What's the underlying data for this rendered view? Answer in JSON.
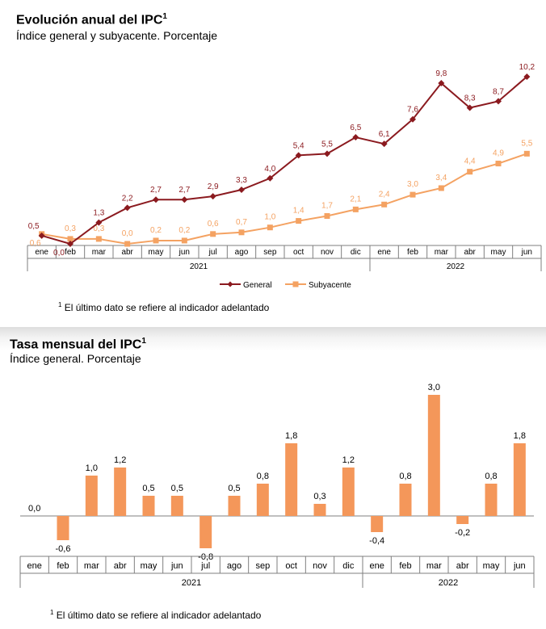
{
  "charts": [
    {
      "title": "Evolución anual del IPC",
      "title_sup": "1",
      "subtitle": "Índice general y subyacente. Porcentaje",
      "footnote_mark": "1",
      "footnote": "El último dato se refiere al indicador adelantado"
    },
    {
      "title": "Tasa mensual del IPC",
      "title_sup": "1",
      "subtitle": "Índice general. Porcentaje",
      "footnote_mark": "1",
      "footnote": "El último dato se refiere al indicador adelantado"
    }
  ],
  "colors": {
    "general": "#8b1a1f",
    "subyacente": "#f4a262",
    "bar": "#f4975a",
    "axis": "#7f7f7f"
  },
  "chart_data": [
    {
      "type": "line",
      "title": "Evolución anual del IPC",
      "categories": [
        "ene",
        "feb",
        "mar",
        "abr",
        "may",
        "jun",
        "jul",
        "ago",
        "sep",
        "oct",
        "nov",
        "dic",
        "ene",
        "feb",
        "mar",
        "abr",
        "may",
        "jun"
      ],
      "groups": [
        {
          "label": "2021",
          "count": 12
        },
        {
          "label": "2022",
          "count": 6
        }
      ],
      "series": [
        {
          "name": "General",
          "values": [
            0.5,
            0.0,
            1.3,
            2.2,
            2.7,
            2.7,
            2.9,
            3.3,
            4.0,
            5.4,
            5.5,
            6.5,
            6.1,
            7.6,
            9.8,
            8.3,
            8.7,
            10.2
          ],
          "labels": [
            "0,5",
            "0,0",
            "1,3",
            "2,2",
            "2,7",
            "2,7",
            "2,9",
            "3,3",
            "4,0",
            "5,4",
            "5,5",
            "6,5",
            "6,1",
            "7,6",
            "9,8",
            "8,3",
            "8,7",
            "10,2"
          ]
        },
        {
          "name": "Subyacente",
          "values": [
            0.6,
            0.3,
            0.3,
            0.0,
            0.2,
            0.2,
            0.6,
            0.7,
            1.0,
            1.4,
            1.7,
            2.1,
            2.4,
            3.0,
            3.4,
            4.4,
            4.9,
            5.5
          ],
          "labels": [
            "0,6",
            "0,3",
            "0,3",
            "0,0",
            "0,2",
            "0,2",
            "0,6",
            "0,7",
            "1,0",
            "1,4",
            "1,7",
            "2,1",
            "2,4",
            "3,0",
            "3,4",
            "4,4",
            "4,9",
            "5,5"
          ]
        }
      ],
      "ylim": [
        0,
        10.5
      ],
      "legend": "bottom"
    },
    {
      "type": "bar",
      "title": "Tasa mensual del IPC",
      "categories": [
        "ene",
        "feb",
        "mar",
        "abr",
        "may",
        "jun",
        "jul",
        "ago",
        "sep",
        "oct",
        "nov",
        "dic",
        "ene",
        "feb",
        "mar",
        "abr",
        "may",
        "jun"
      ],
      "groups": [
        {
          "label": "2021",
          "count": 12
        },
        {
          "label": "2022",
          "count": 6
        }
      ],
      "values": [
        0.0,
        -0.6,
        1.0,
        1.2,
        0.5,
        0.5,
        -0.8,
        0.5,
        0.8,
        1.8,
        0.3,
        1.2,
        -0.4,
        0.8,
        3.0,
        -0.2,
        0.8,
        1.8
      ],
      "labels": [
        "0,0",
        "-0,6",
        "1,0",
        "1,2",
        "0,5",
        "0,5",
        "-0,8",
        "0,5",
        "0,8",
        "1,8",
        "0,3",
        "1,2",
        "-0,4",
        "0,8",
        "3,0",
        "-0,2",
        "0,8",
        "1,8"
      ],
      "ylim": [
        -0.8,
        3.0
      ]
    }
  ]
}
